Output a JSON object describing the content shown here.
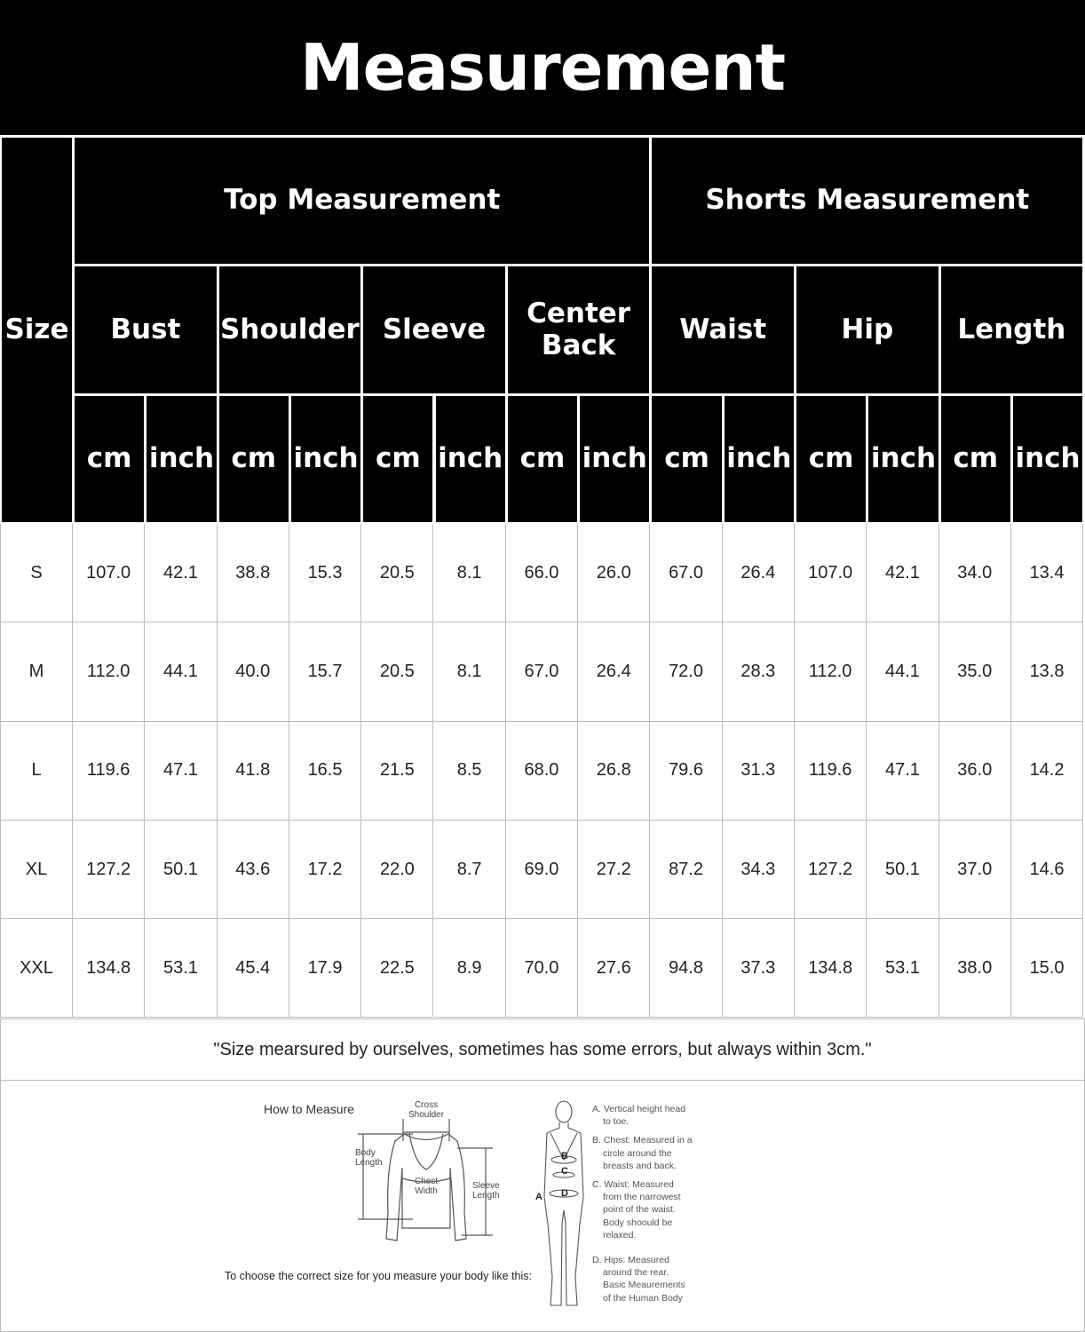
{
  "title": "Measurement",
  "size_label": "Size",
  "groups": [
    {
      "label": "Top Measurement"
    },
    {
      "label": "Shorts Measurement"
    }
  ],
  "measures": [
    "Bust",
    "Shoulder",
    "Sleeve",
    "Center Back",
    "Waist",
    "Hip",
    "Length"
  ],
  "units": [
    "cm",
    "inch"
  ],
  "rows": [
    {
      "size": "S",
      "values": [
        "107.0",
        "42.1",
        "38.8",
        "15.3",
        "20.5",
        "8.1",
        "66.0",
        "26.0",
        "67.0",
        "26.4",
        "107.0",
        "42.1",
        "34.0",
        "13.4"
      ]
    },
    {
      "size": "M",
      "values": [
        "112.0",
        "44.1",
        "40.0",
        "15.7",
        "20.5",
        "8.1",
        "67.0",
        "26.4",
        "72.0",
        "28.3",
        "112.0",
        "44.1",
        "35.0",
        "13.8"
      ]
    },
    {
      "size": "L",
      "values": [
        "119.6",
        "47.1",
        "41.8",
        "16.5",
        "21.5",
        "8.5",
        "68.0",
        "26.8",
        "79.6",
        "31.3",
        "119.6",
        "47.1",
        "36.0",
        "14.2"
      ]
    },
    {
      "size": "XL",
      "values": [
        "127.2",
        "50.1",
        "43.6",
        "17.2",
        "22.0",
        "8.7",
        "69.0",
        "27.2",
        "87.2",
        "34.3",
        "127.2",
        "50.1",
        "37.0",
        "14.6"
      ]
    },
    {
      "size": "XXL",
      "values": [
        "134.8",
        "53.1",
        "45.4",
        "17.9",
        "22.5",
        "8.9",
        "70.0",
        "27.6",
        "94.8",
        "37.3",
        "134.8",
        "53.1",
        "38.0",
        "15.0"
      ]
    }
  ],
  "note": "\"Size mearsured by ourselves, sometimes has some errors, but always within 3cm.\"",
  "guide": {
    "heading": "How to Measure",
    "cross_shoulder": [
      "Cross",
      "Shoulder"
    ],
    "body_length": [
      "Body",
      "Length"
    ],
    "chest_width": [
      "Chest",
      "Width"
    ],
    "sleeve_length": [
      "Sleeve",
      "Length"
    ],
    "instruction": "To choose the correct size for you measure your body like this:",
    "letters": [
      "A",
      "B",
      "C",
      "D"
    ],
    "legend": [
      [
        "A. Vertical height head",
        "to toe."
      ],
      [
        "B. Chest: Measured in a",
        "circle around the",
        "breasts and back."
      ],
      [
        "C. Waist: Measured",
        "from the narrowest",
        "point of the waist.",
        "Body shoould be",
        "relaxed."
      ],
      [
        "D. Hips: Measured",
        "around the rear.",
        "Basic Meaurements",
        "of the Human Body"
      ]
    ]
  }
}
